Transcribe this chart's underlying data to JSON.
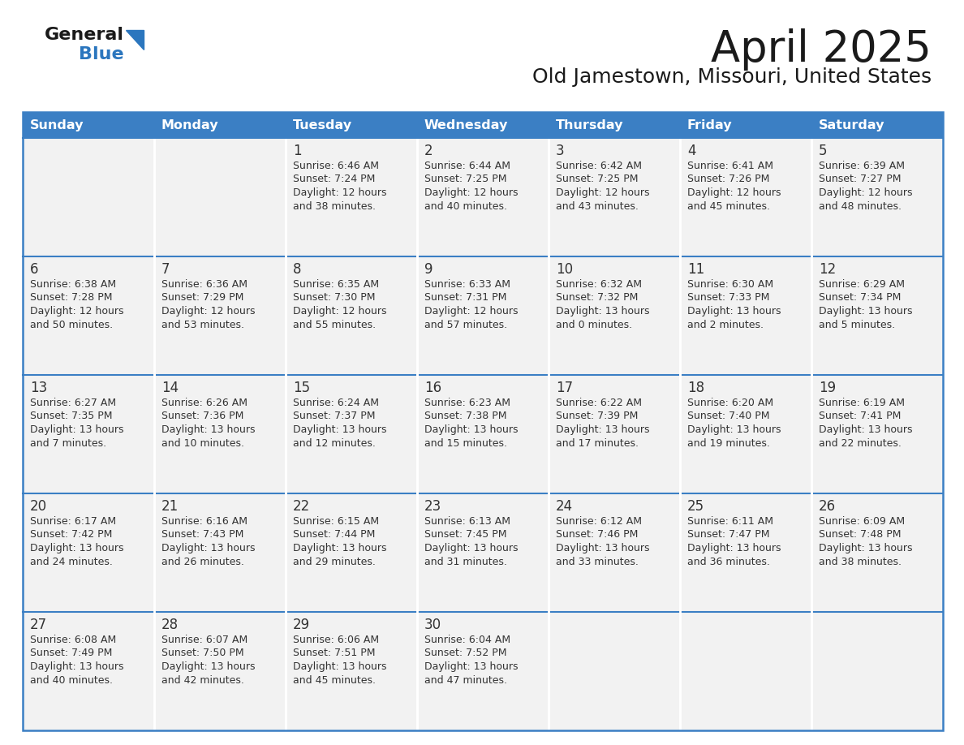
{
  "title": "April 2025",
  "subtitle": "Old Jamestown, Missouri, United States",
  "days_of_week": [
    "Sunday",
    "Monday",
    "Tuesday",
    "Wednesday",
    "Thursday",
    "Friday",
    "Saturday"
  ],
  "header_bg": "#3b7fc4",
  "header_text": "#ffffff",
  "cell_bg": "#f2f2f2",
  "row_sep_color": "#3b7fc4",
  "col_sep_color": "#ffffff",
  "border_color": "#3b7fc4",
  "text_color": "#333333",
  "logo_text_color": "#1a1a1a",
  "logo_blue_color": "#2b76be",
  "title_color": "#1a1a1a",
  "calendar_data": [
    [
      {
        "day": "",
        "sunrise": "",
        "sunset": "",
        "daylight": ""
      },
      {
        "day": "",
        "sunrise": "",
        "sunset": "",
        "daylight": ""
      },
      {
        "day": "1",
        "sunrise": "Sunrise: 6:46 AM",
        "sunset": "Sunset: 7:24 PM",
        "daylight": "Daylight: 12 hours\nand 38 minutes."
      },
      {
        "day": "2",
        "sunrise": "Sunrise: 6:44 AM",
        "sunset": "Sunset: 7:25 PM",
        "daylight": "Daylight: 12 hours\nand 40 minutes."
      },
      {
        "day": "3",
        "sunrise": "Sunrise: 6:42 AM",
        "sunset": "Sunset: 7:25 PM",
        "daylight": "Daylight: 12 hours\nand 43 minutes."
      },
      {
        "day": "4",
        "sunrise": "Sunrise: 6:41 AM",
        "sunset": "Sunset: 7:26 PM",
        "daylight": "Daylight: 12 hours\nand 45 minutes."
      },
      {
        "day": "5",
        "sunrise": "Sunrise: 6:39 AM",
        "sunset": "Sunset: 7:27 PM",
        "daylight": "Daylight: 12 hours\nand 48 minutes."
      }
    ],
    [
      {
        "day": "6",
        "sunrise": "Sunrise: 6:38 AM",
        "sunset": "Sunset: 7:28 PM",
        "daylight": "Daylight: 12 hours\nand 50 minutes."
      },
      {
        "day": "7",
        "sunrise": "Sunrise: 6:36 AM",
        "sunset": "Sunset: 7:29 PM",
        "daylight": "Daylight: 12 hours\nand 53 minutes."
      },
      {
        "day": "8",
        "sunrise": "Sunrise: 6:35 AM",
        "sunset": "Sunset: 7:30 PM",
        "daylight": "Daylight: 12 hours\nand 55 minutes."
      },
      {
        "day": "9",
        "sunrise": "Sunrise: 6:33 AM",
        "sunset": "Sunset: 7:31 PM",
        "daylight": "Daylight: 12 hours\nand 57 minutes."
      },
      {
        "day": "10",
        "sunrise": "Sunrise: 6:32 AM",
        "sunset": "Sunset: 7:32 PM",
        "daylight": "Daylight: 13 hours\nand 0 minutes."
      },
      {
        "day": "11",
        "sunrise": "Sunrise: 6:30 AM",
        "sunset": "Sunset: 7:33 PM",
        "daylight": "Daylight: 13 hours\nand 2 minutes."
      },
      {
        "day": "12",
        "sunrise": "Sunrise: 6:29 AM",
        "sunset": "Sunset: 7:34 PM",
        "daylight": "Daylight: 13 hours\nand 5 minutes."
      }
    ],
    [
      {
        "day": "13",
        "sunrise": "Sunrise: 6:27 AM",
        "sunset": "Sunset: 7:35 PM",
        "daylight": "Daylight: 13 hours\nand 7 minutes."
      },
      {
        "day": "14",
        "sunrise": "Sunrise: 6:26 AM",
        "sunset": "Sunset: 7:36 PM",
        "daylight": "Daylight: 13 hours\nand 10 minutes."
      },
      {
        "day": "15",
        "sunrise": "Sunrise: 6:24 AM",
        "sunset": "Sunset: 7:37 PM",
        "daylight": "Daylight: 13 hours\nand 12 minutes."
      },
      {
        "day": "16",
        "sunrise": "Sunrise: 6:23 AM",
        "sunset": "Sunset: 7:38 PM",
        "daylight": "Daylight: 13 hours\nand 15 minutes."
      },
      {
        "day": "17",
        "sunrise": "Sunrise: 6:22 AM",
        "sunset": "Sunset: 7:39 PM",
        "daylight": "Daylight: 13 hours\nand 17 minutes."
      },
      {
        "day": "18",
        "sunrise": "Sunrise: 6:20 AM",
        "sunset": "Sunset: 7:40 PM",
        "daylight": "Daylight: 13 hours\nand 19 minutes."
      },
      {
        "day": "19",
        "sunrise": "Sunrise: 6:19 AM",
        "sunset": "Sunset: 7:41 PM",
        "daylight": "Daylight: 13 hours\nand 22 minutes."
      }
    ],
    [
      {
        "day": "20",
        "sunrise": "Sunrise: 6:17 AM",
        "sunset": "Sunset: 7:42 PM",
        "daylight": "Daylight: 13 hours\nand 24 minutes."
      },
      {
        "day": "21",
        "sunrise": "Sunrise: 6:16 AM",
        "sunset": "Sunset: 7:43 PM",
        "daylight": "Daylight: 13 hours\nand 26 minutes."
      },
      {
        "day": "22",
        "sunrise": "Sunrise: 6:15 AM",
        "sunset": "Sunset: 7:44 PM",
        "daylight": "Daylight: 13 hours\nand 29 minutes."
      },
      {
        "day": "23",
        "sunrise": "Sunrise: 6:13 AM",
        "sunset": "Sunset: 7:45 PM",
        "daylight": "Daylight: 13 hours\nand 31 minutes."
      },
      {
        "day": "24",
        "sunrise": "Sunrise: 6:12 AM",
        "sunset": "Sunset: 7:46 PM",
        "daylight": "Daylight: 13 hours\nand 33 minutes."
      },
      {
        "day": "25",
        "sunrise": "Sunrise: 6:11 AM",
        "sunset": "Sunset: 7:47 PM",
        "daylight": "Daylight: 13 hours\nand 36 minutes."
      },
      {
        "day": "26",
        "sunrise": "Sunrise: 6:09 AM",
        "sunset": "Sunset: 7:48 PM",
        "daylight": "Daylight: 13 hours\nand 38 minutes."
      }
    ],
    [
      {
        "day": "27",
        "sunrise": "Sunrise: 6:08 AM",
        "sunset": "Sunset: 7:49 PM",
        "daylight": "Daylight: 13 hours\nand 40 minutes."
      },
      {
        "day": "28",
        "sunrise": "Sunrise: 6:07 AM",
        "sunset": "Sunset: 7:50 PM",
        "daylight": "Daylight: 13 hours\nand 42 minutes."
      },
      {
        "day": "29",
        "sunrise": "Sunrise: 6:06 AM",
        "sunset": "Sunset: 7:51 PM",
        "daylight": "Daylight: 13 hours\nand 45 minutes."
      },
      {
        "day": "30",
        "sunrise": "Sunrise: 6:04 AM",
        "sunset": "Sunset: 7:52 PM",
        "daylight": "Daylight: 13 hours\nand 47 minutes."
      },
      {
        "day": "",
        "sunrise": "",
        "sunset": "",
        "daylight": ""
      },
      {
        "day": "",
        "sunrise": "",
        "sunset": "",
        "daylight": ""
      },
      {
        "day": "",
        "sunrise": "",
        "sunset": "",
        "daylight": ""
      }
    ]
  ]
}
